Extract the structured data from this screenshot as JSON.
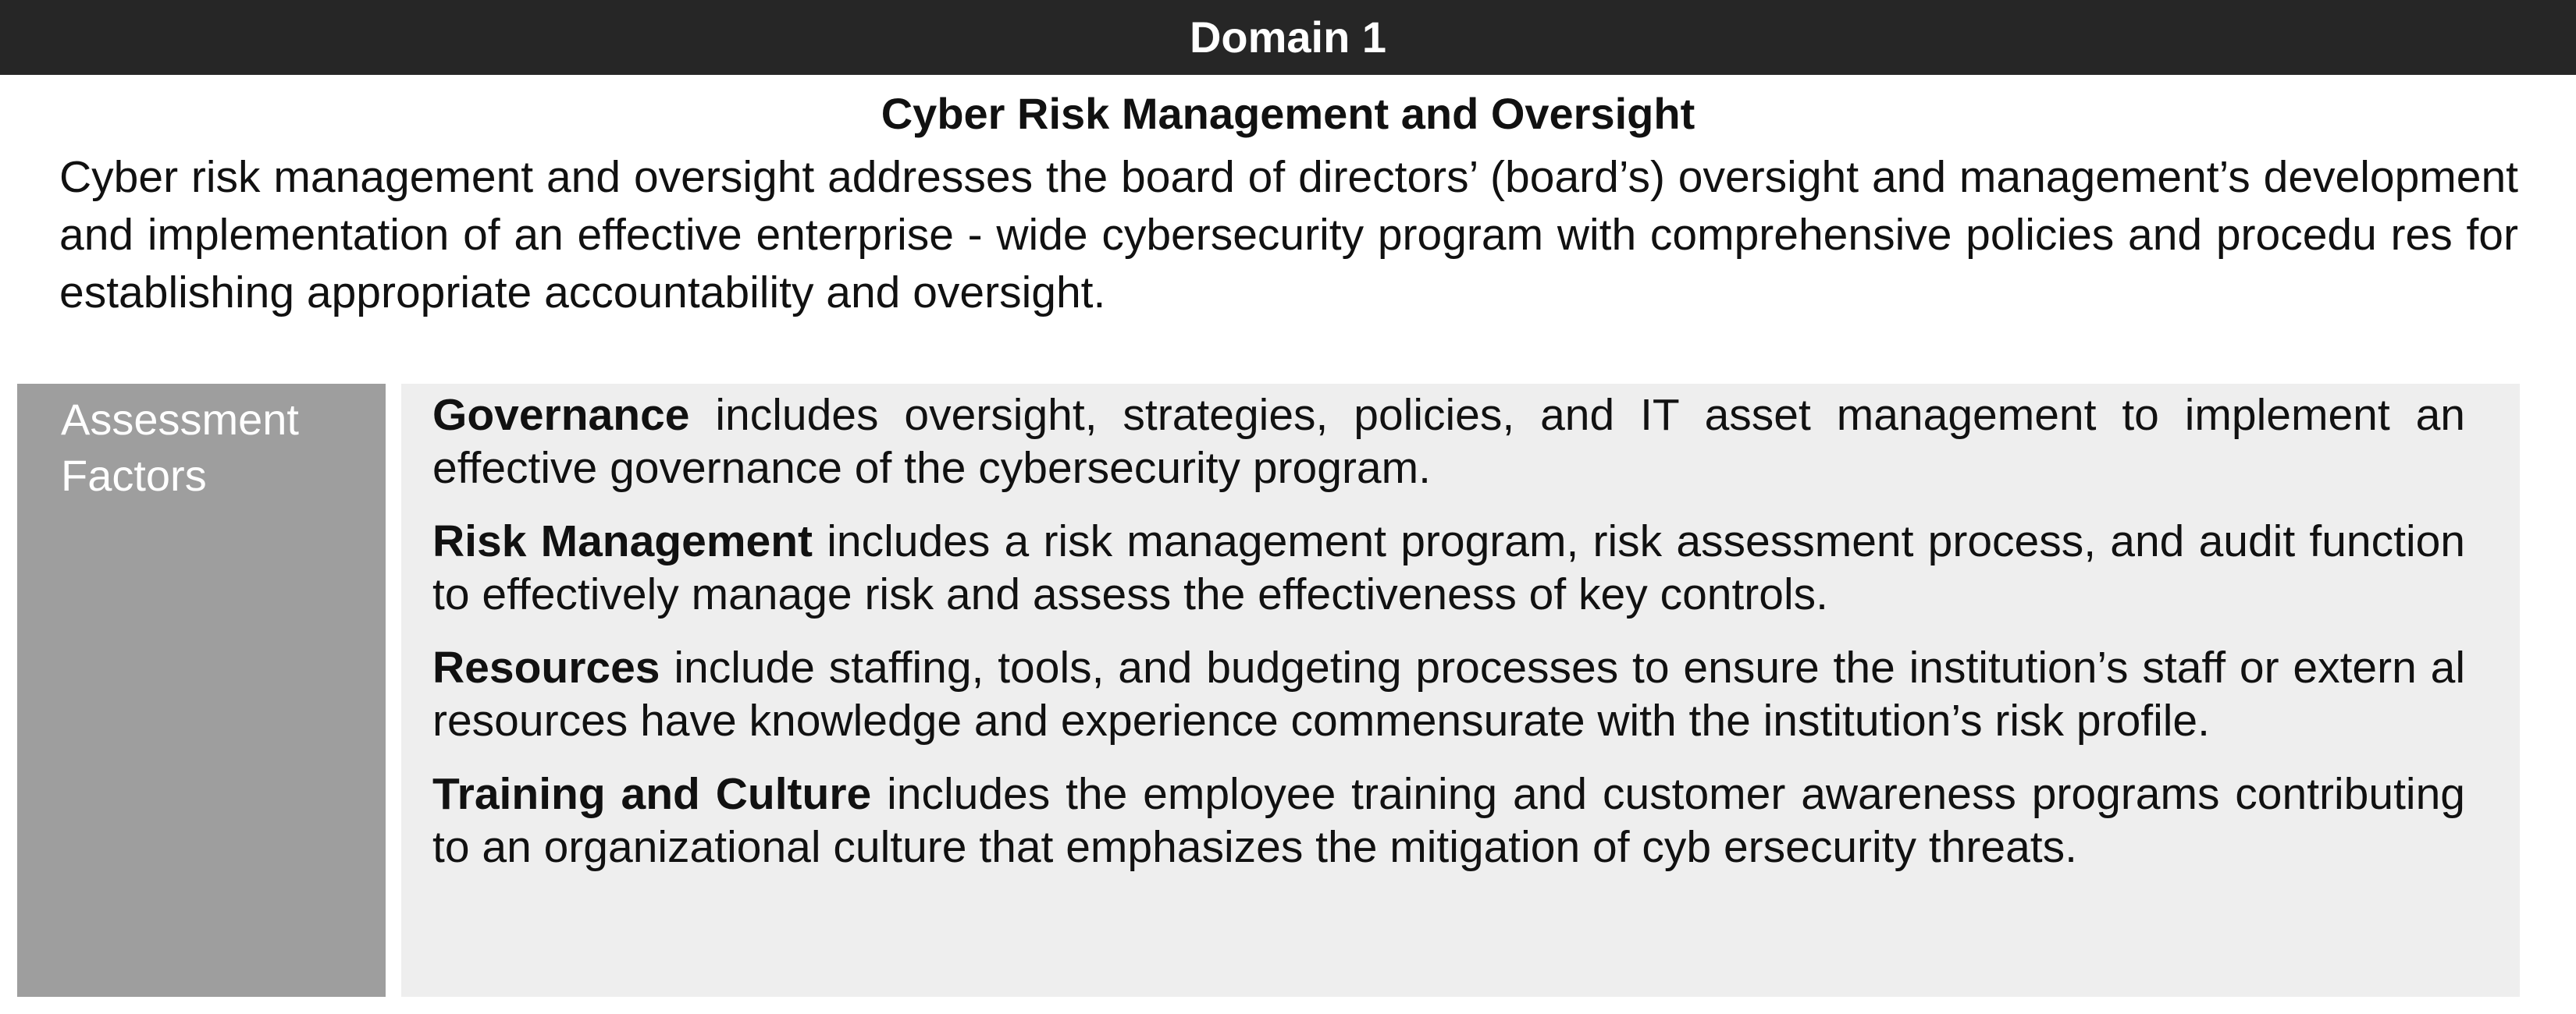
{
  "header": {
    "domain_label": "Domain 1"
  },
  "domain": {
    "title": "Cyber Risk Management and Oversight",
    "description": "Cyber risk management and oversight addresses the board of directors’ (board’s) oversight and management’s development and implementation of an effective enterprise - wide cybersecurity program with comprehensive policies and procedu res for establishing appropriate accountability and oversight."
  },
  "assessment_factors": {
    "heading": "Assessment Factors",
    "items": [
      {
        "term": "Governance",
        "text": " includes oversight, strategies, policies, and IT asset management to implement an effective governance of the cybersecurity program."
      },
      {
        "term": "Risk Management",
        "text": " includes a risk management program, risk assessment process, and audit function to effectively manage risk and assess the effectiveness of key controls."
      },
      {
        "term": "Resources",
        "text": " include staffing, tools, and budgeting processes to ensure the institution’s staff or extern al resources have knowledge and experience commensurate with the institution’s risk profile."
      },
      {
        "term": "Training and Culture",
        "text": " includes the employee training and customer awareness programs contributing to an organizational culture that emphasizes the mitigation of cyb ersecurity threats."
      }
    ]
  },
  "colors": {
    "header_bg": "#262626",
    "heading_cell_bg": "#9e9e9e",
    "body_cell_bg": "#eeeeee"
  }
}
